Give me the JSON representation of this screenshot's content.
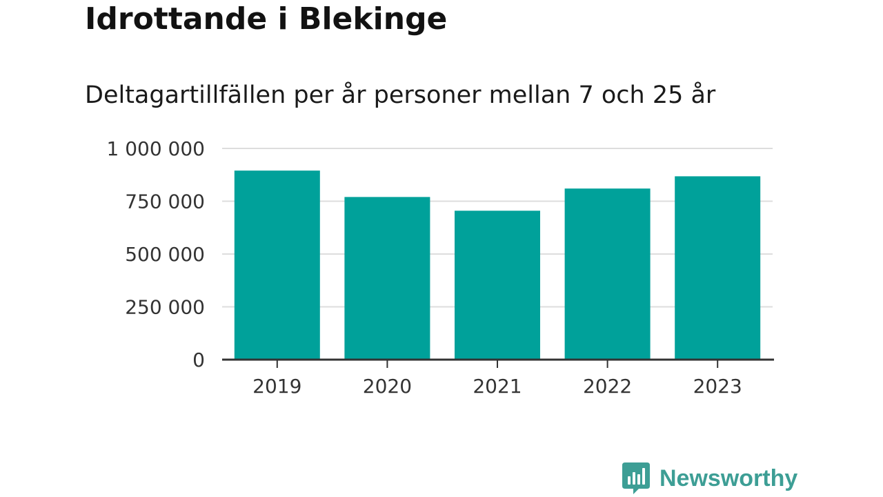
{
  "header": {
    "title": "Idrottande i Blekinge",
    "subtitle": "Deltagartillfällen per år personer mellan 7 och 25 år"
  },
  "brand": {
    "name": "Newsworthy",
    "color": "#3d9e95"
  },
  "colors": {
    "bar": "#00a19a",
    "grid": "#dddddd",
    "axis": "#333333",
    "tick_text": "#333333"
  },
  "chart_data": {
    "type": "bar",
    "categories": [
      "2019",
      "2020",
      "2021",
      "2022",
      "2023"
    ],
    "values": [
      895000,
      770000,
      705000,
      810000,
      868000
    ],
    "ylim": [
      0,
      1000000
    ],
    "yticks": [
      0,
      250000,
      500000,
      750000,
      1000000
    ],
    "ytick_labels": [
      "0",
      "250 000",
      "500 000",
      "750 000",
      "1 000 000"
    ],
    "grid": true,
    "xlabel": "",
    "ylabel": ""
  }
}
